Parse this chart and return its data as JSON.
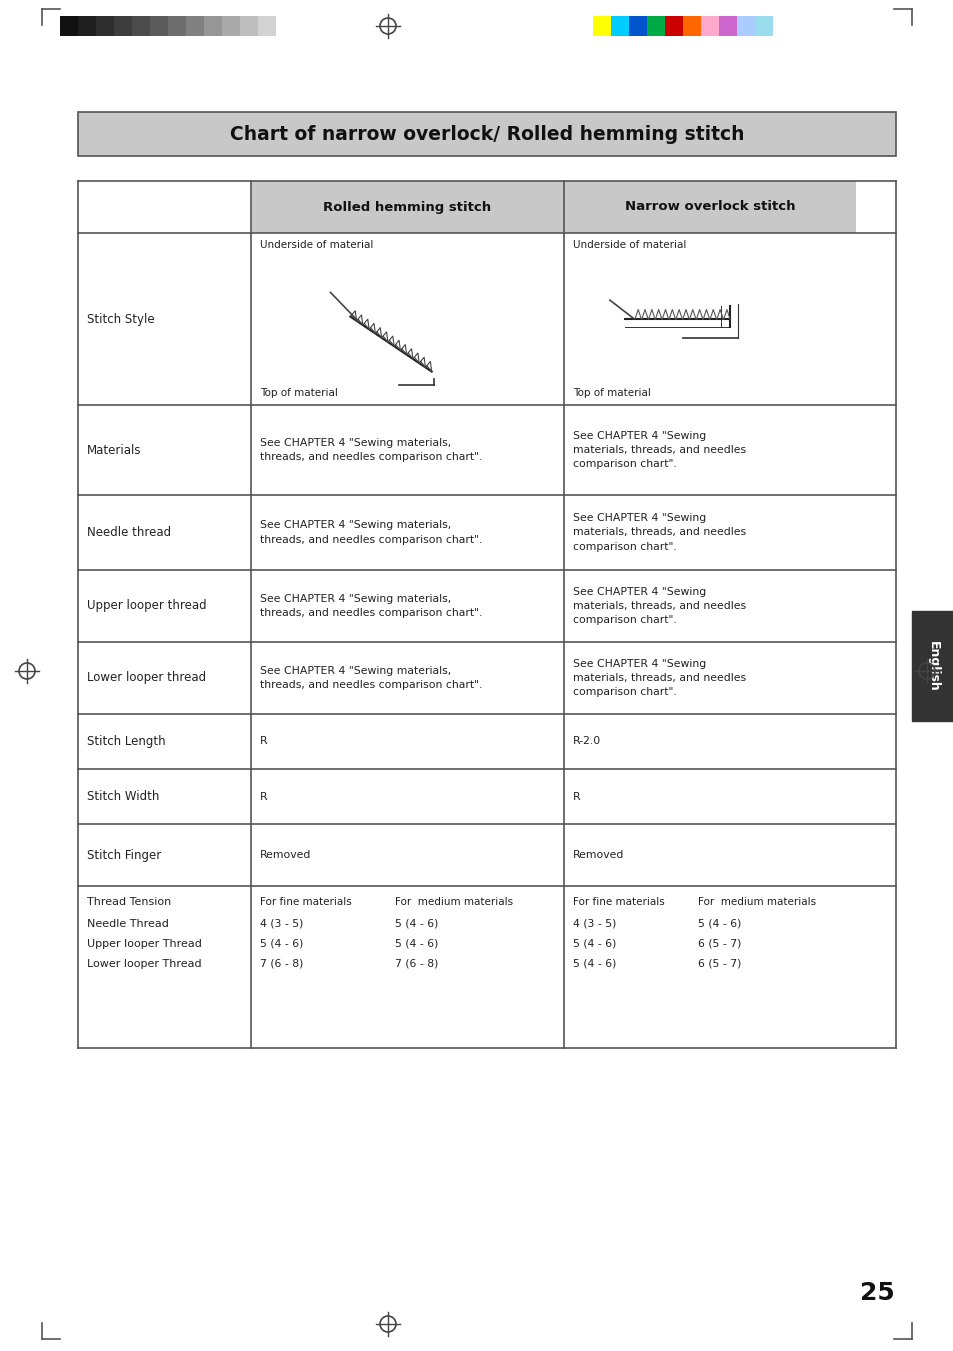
{
  "title": "Chart of narrow overlock/ Rolled hemming stitch",
  "title_bg": "#c8c8c8",
  "header_bg": "#c8c8c8",
  "col2_header": "Rolled hemming stitch",
  "col3_header": "Narrow overlock stitch",
  "thread_tension_rolled": {
    "header1": "For fine materials",
    "header2": "For  medium materials",
    "needle": [
      "4 (3 - 5)",
      "5 (4 - 6)"
    ],
    "upper": [
      "5 (4 - 6)",
      "5 (4 - 6)"
    ],
    "lower": [
      "7 (6 - 8)",
      "7 (6 - 8)"
    ]
  },
  "thread_tension_narrow": {
    "header1": "For fine materials",
    "header2": "For  medium materials",
    "needle": [
      "4 (3 - 5)",
      "5 (4 - 6)"
    ],
    "upper": [
      "5 (4 - 6)",
      "6 (5 - 7)"
    ],
    "lower": [
      "5 (4 - 6)",
      "6 (5 - 7)"
    ]
  },
  "page_number": "25",
  "side_label": "English",
  "side_label_bg": "#333333",
  "table_line_color": "#555555",
  "text_color": "#222222",
  "bar_colors_left": [
    "#111111",
    "#1e1e1e",
    "#2d2d2d",
    "#3c3c3c",
    "#4b4b4b",
    "#5a5a5a",
    "#6e6e6e",
    "#808080",
    "#969696",
    "#aaaaaa",
    "#bebebe",
    "#d2d2d2",
    "#ffffff"
  ],
  "bar_colors_right": [
    "#ffff00",
    "#00ccff",
    "#0055cc",
    "#00aa44",
    "#cc0000",
    "#ff6600",
    "#ffaacc",
    "#cc66cc",
    "#aaccff",
    "#99ddee"
  ]
}
